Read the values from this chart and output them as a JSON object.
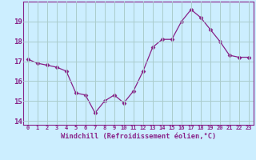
{
  "x": [
    0,
    1,
    2,
    3,
    4,
    5,
    6,
    7,
    8,
    9,
    10,
    11,
    12,
    13,
    14,
    15,
    16,
    17,
    18,
    19,
    20,
    21,
    22,
    23
  ],
  "y": [
    17.1,
    16.9,
    16.8,
    16.7,
    16.5,
    15.4,
    15.3,
    14.4,
    15.0,
    15.3,
    14.9,
    15.5,
    16.5,
    17.7,
    18.1,
    18.1,
    19.0,
    19.6,
    19.2,
    18.6,
    18.0,
    17.3,
    17.2,
    17.2
  ],
  "line_color": "#882288",
  "marker": "D",
  "marker_size": 2.5,
  "bg_color": "#cceeff",
  "grid_color": "#aacccc",
  "xlabel": "Windchill (Refroidissement éolien,°C)",
  "xlabel_color": "#882288",
  "tick_color": "#882288",
  "ylim": [
    13.8,
    20.0
  ],
  "xlim": [
    -0.5,
    23.5
  ],
  "yticks": [
    14,
    15,
    16,
    17,
    18,
    19
  ],
  "xticks": [
    0,
    1,
    2,
    3,
    4,
    5,
    6,
    7,
    8,
    9,
    10,
    11,
    12,
    13,
    14,
    15,
    16,
    17,
    18,
    19,
    20,
    21,
    22,
    23
  ]
}
